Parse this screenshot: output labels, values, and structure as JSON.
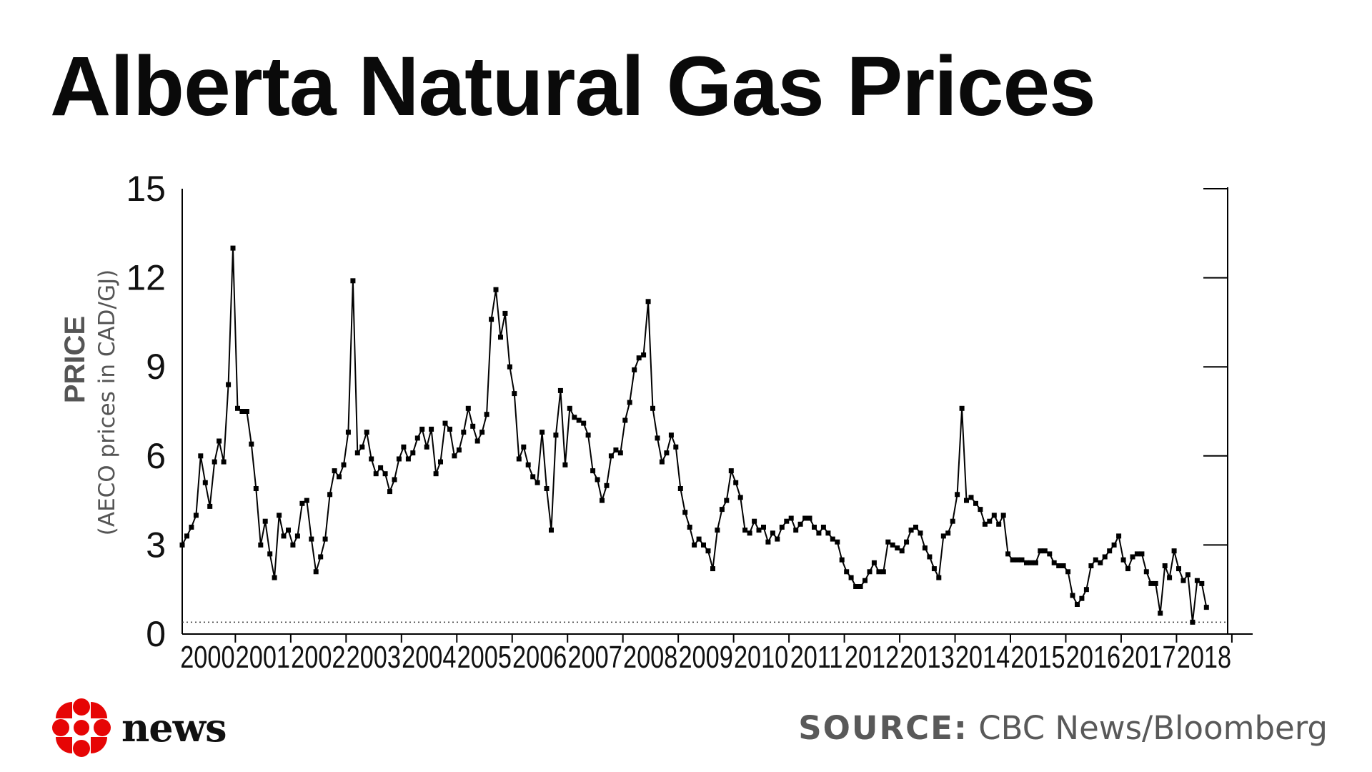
{
  "title": "Alberta Natural Gas Prices",
  "source": {
    "label": "SOURCE:",
    "text": "CBC News/Bloomberg"
  },
  "logo": {
    "text": "news",
    "icon": "cbc-gem-icon",
    "color": "#e60505"
  },
  "chart_data": {
    "type": "line",
    "title": "Alberta Natural Gas Prices",
    "ylabel": "PRICE",
    "ylabel_sub": "(AECO prices in CAD/GJ)",
    "xlabel": "",
    "ylim": [
      0,
      15
    ],
    "yticks": [
      0,
      3,
      6,
      9,
      12,
      15
    ],
    "xlim": [
      1999.04,
      2018.04
    ],
    "year_labels": [
      "2000",
      "2001",
      "2002",
      "2003",
      "2004",
      "2005",
      "2006",
      "2007",
      "2008",
      "2009",
      "2010",
      "2011",
      "2012",
      "2013",
      "2014",
      "2015",
      "2016",
      "2017",
      "2018"
    ],
    "reference_line": {
      "style": "dotted",
      "y": 0.4
    },
    "series": [
      {
        "color": "#000000",
        "marker": "square",
        "x_start": 1999.04,
        "x_step": 0.0833333,
        "values": [
          3.0,
          3.3,
          3.6,
          4.0,
          6.0,
          5.1,
          4.3,
          5.8,
          6.5,
          5.8,
          8.4,
          13.0,
          7.6,
          7.5,
          7.5,
          6.4,
          4.9,
          3.0,
          3.8,
          2.7,
          1.9,
          4.0,
          3.3,
          3.5,
          3.0,
          3.3,
          4.4,
          4.5,
          3.2,
          2.1,
          2.6,
          3.2,
          4.7,
          5.5,
          5.3,
          5.7,
          6.8,
          11.9,
          6.1,
          6.3,
          6.8,
          5.9,
          5.4,
          5.6,
          5.4,
          4.8,
          5.2,
          5.9,
          6.3,
          5.9,
          6.1,
          6.6,
          6.9,
          6.3,
          6.9,
          5.4,
          5.8,
          7.1,
          6.9,
          6.0,
          6.2,
          6.8,
          7.6,
          7.0,
          6.5,
          6.8,
          7.4,
          10.6,
          11.6,
          10.0,
          10.8,
          9.0,
          8.1,
          5.9,
          6.3,
          5.7,
          5.3,
          5.1,
          6.8,
          4.9,
          3.5,
          6.7,
          8.2,
          5.7,
          7.6,
          7.3,
          7.2,
          7.1,
          6.7,
          5.5,
          5.2,
          4.5,
          5.0,
          6.0,
          6.2,
          6.1,
          7.2,
          7.8,
          8.9,
          9.3,
          9.4,
          11.2,
          7.6,
          6.6,
          5.8,
          6.1,
          6.7,
          6.3,
          4.9,
          4.1,
          3.6,
          3.0,
          3.2,
          3.0,
          2.8,
          2.2,
          3.5,
          4.2,
          4.5,
          5.5,
          5.1,
          4.6,
          3.5,
          3.4,
          3.8,
          3.5,
          3.6,
          3.1,
          3.4,
          3.2,
          3.6,
          3.8,
          3.9,
          3.5,
          3.7,
          3.9,
          3.9,
          3.6,
          3.4,
          3.6,
          3.4,
          3.2,
          3.1,
          2.5,
          2.1,
          1.9,
          1.6,
          1.6,
          1.8,
          2.1,
          2.4,
          2.1,
          2.1,
          3.1,
          3.0,
          2.9,
          2.8,
          3.1,
          3.5,
          3.6,
          3.4,
          2.9,
          2.6,
          2.2,
          1.9,
          3.3,
          3.4,
          3.8,
          4.7,
          7.6,
          4.5,
          4.6,
          4.4,
          4.2,
          3.7,
          3.8,
          4.0,
          3.7,
          4.0,
          2.7,
          2.5,
          2.5,
          2.5,
          2.4,
          2.4,
          2.4,
          2.8,
          2.8,
          2.7,
          2.4,
          2.3,
          2.3,
          2.1,
          1.3,
          1.0,
          1.2,
          1.5,
          2.3,
          2.5,
          2.4,
          2.6,
          2.8,
          3.0,
          3.3,
          2.5,
          2.2,
          2.6,
          2.7,
          2.7,
          2.1,
          1.7,
          1.7,
          0.7,
          2.3,
          1.9,
          2.8,
          2.2,
          1.8,
          2.0,
          0.4,
          1.8,
          1.7,
          0.9
        ]
      }
    ]
  }
}
